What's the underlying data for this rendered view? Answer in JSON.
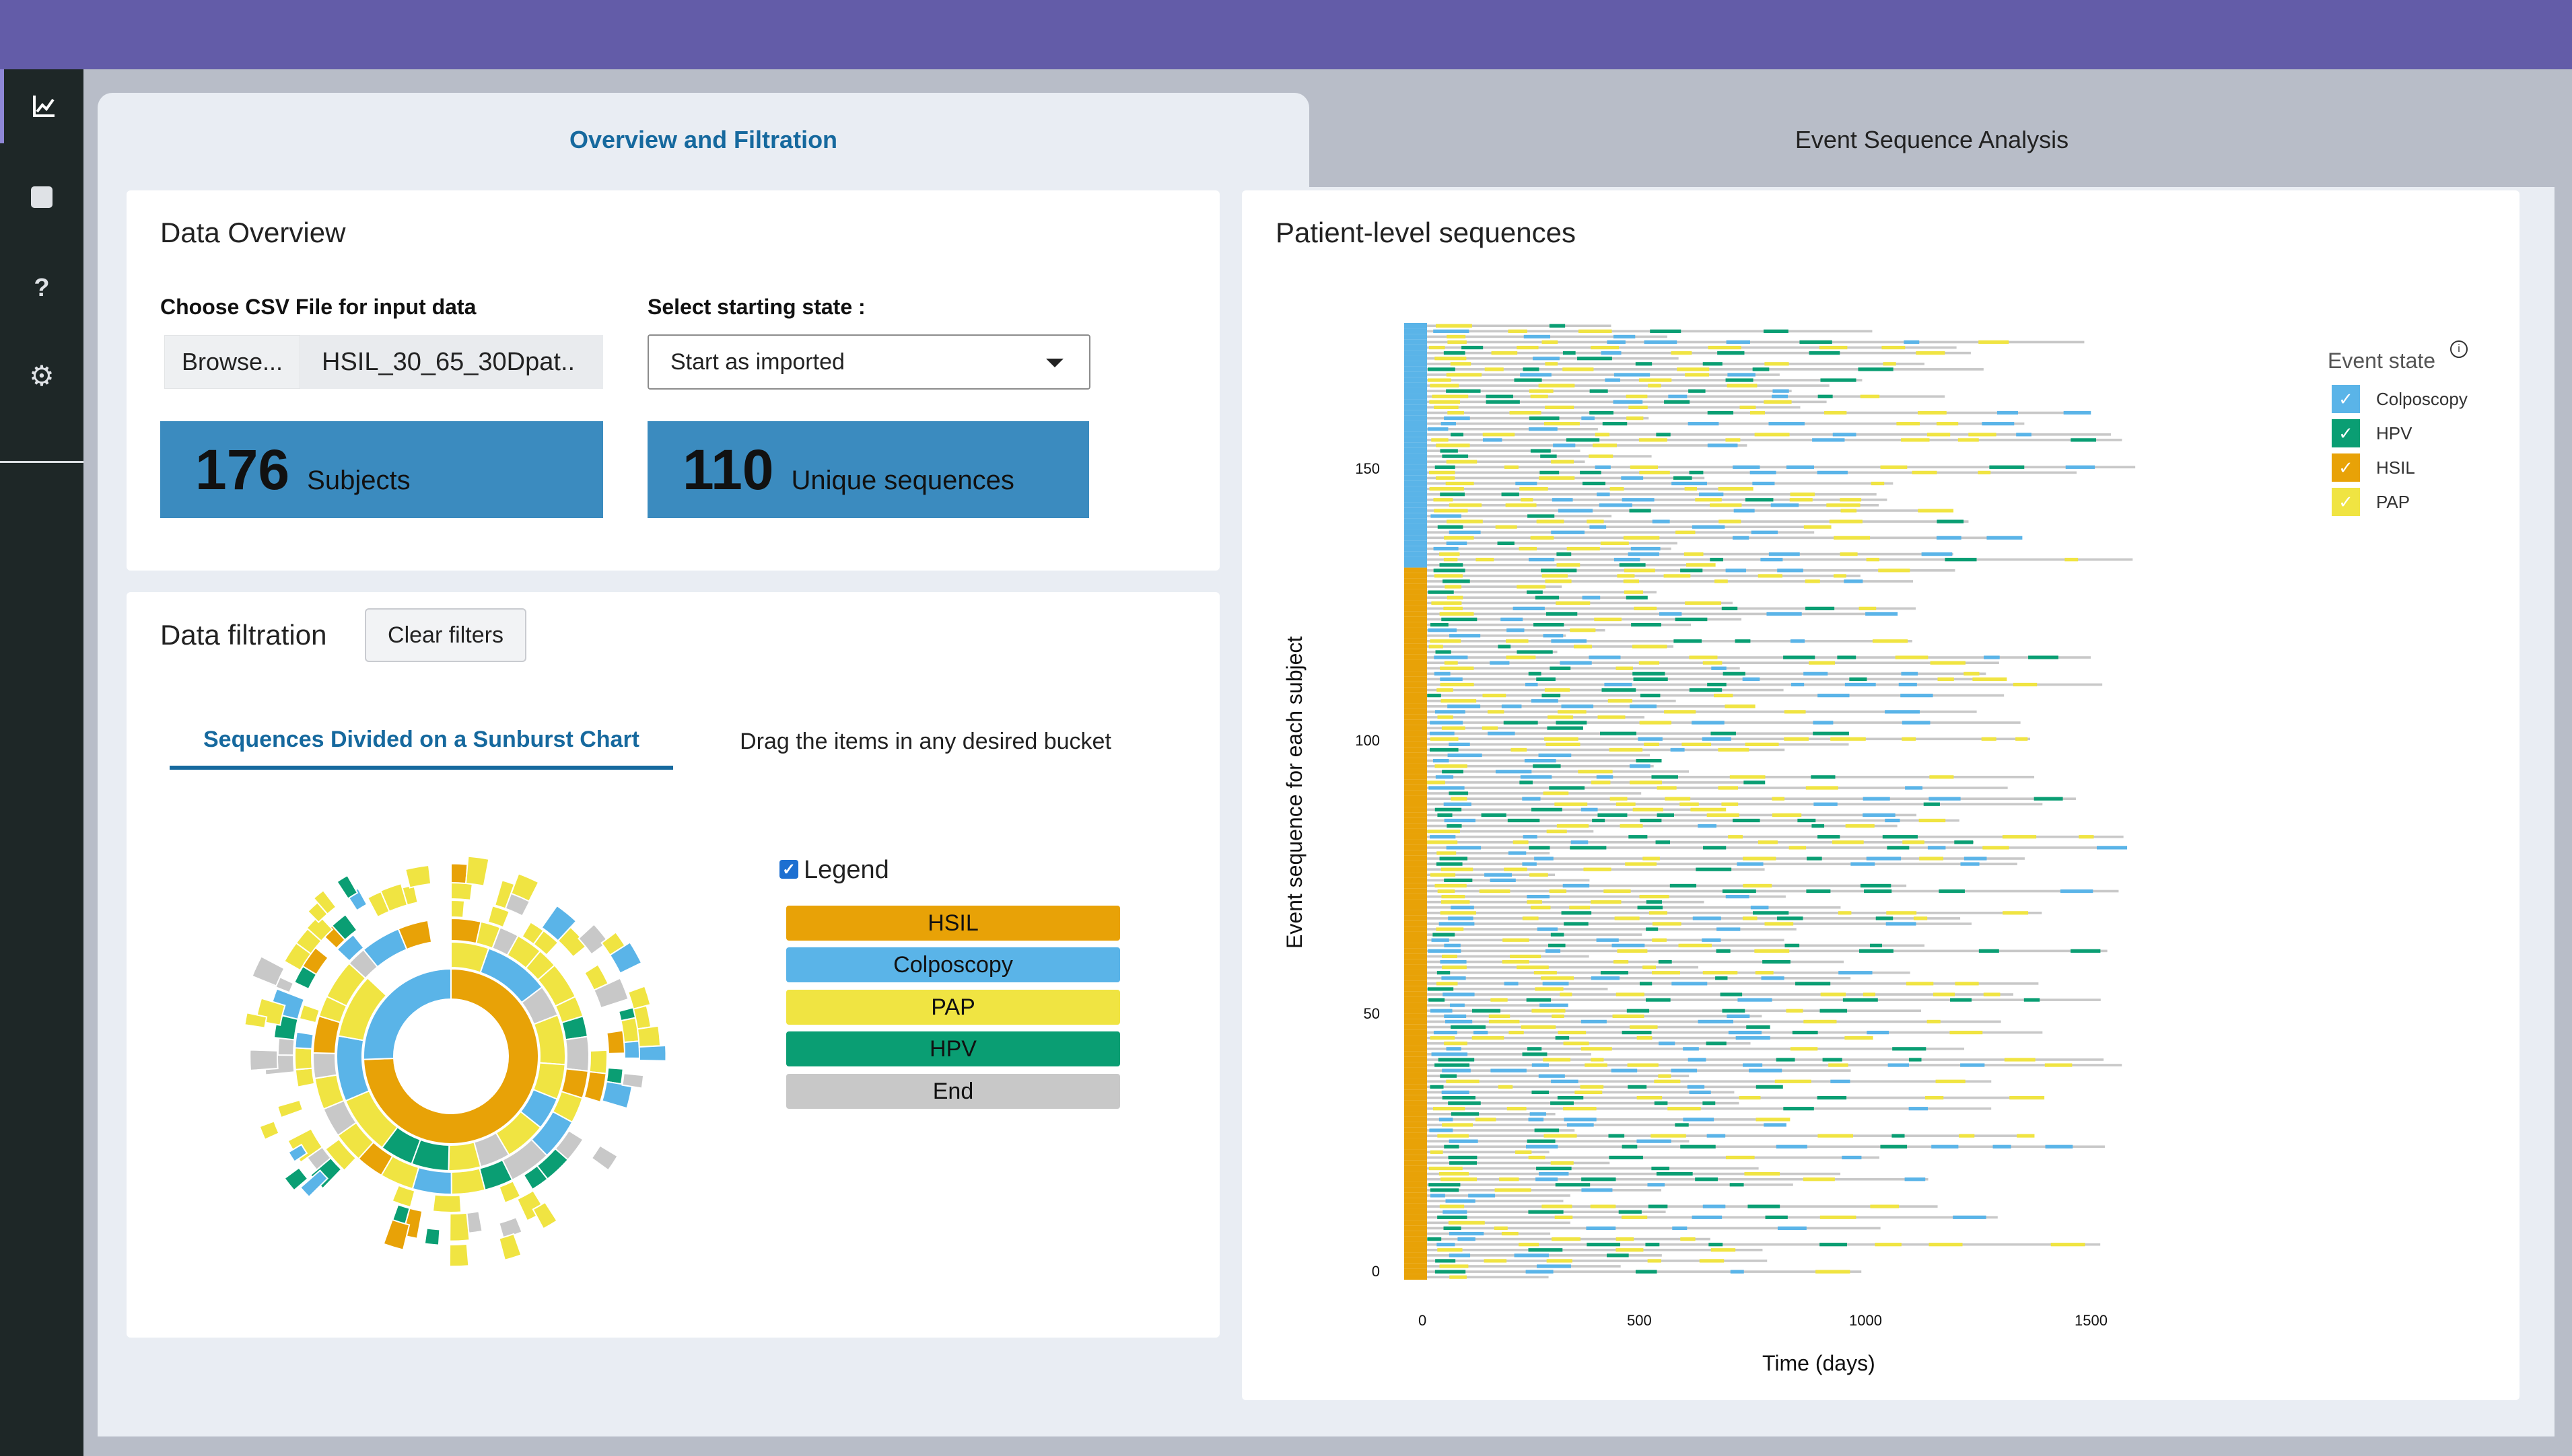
{
  "tabs": {
    "overview": "Overview and Filtration",
    "event_sequence": "Event Sequence Analysis"
  },
  "sidebar": {
    "items": [
      {
        "icon": "chart-line-icon"
      },
      {
        "icon": "square-icon"
      },
      {
        "icon": "question-icon",
        "glyph": "?"
      },
      {
        "icon": "gear-icon",
        "glyph": "⚙"
      }
    ]
  },
  "overview": {
    "title": "Data Overview",
    "csv_label": "Choose CSV File for input data",
    "browse_label": "Browse...",
    "file_name": "HSIL_30_65_30Dpat..",
    "state_label": "Select starting state :",
    "state_value": "Start as imported",
    "subjects_count": "176",
    "subjects_label": "Subjects",
    "sequences_count": "110",
    "sequences_label": "Unique sequences"
  },
  "filtration": {
    "title": "Data filtration",
    "clear_label": "Clear filters",
    "subtab_sunburst": "Sequences Divided on a Sunburst Chart",
    "subtab_drag": "Drag the items in any desired bucket",
    "legend_label": "Legend",
    "buckets": [
      {
        "label": "HSIL",
        "color": "#e8a207"
      },
      {
        "label": "Colposcopy",
        "color": "#5ab4e8"
      },
      {
        "label": "PAP",
        "color": "#f0e442"
      },
      {
        "label": "HPV",
        "color": "#0a9e73"
      },
      {
        "label": "End",
        "color": "#c8c8c8"
      }
    ]
  },
  "patient_chart": {
    "title": "Patient-level sequences",
    "legend_title": "Event state",
    "legend": [
      {
        "label": "Colposcopy",
        "color": "#5ab4e8"
      },
      {
        "label": "HPV",
        "color": "#0a9e73"
      },
      {
        "label": "HSIL",
        "color": "#e8a207"
      },
      {
        "label": "PAP",
        "color": "#f0e442"
      }
    ]
  },
  "chart_data": {
    "type": "bar",
    "title": "Patient-level sequences",
    "xlabel": "Time (days)",
    "ylabel": "Event sequence for each subject",
    "xlim": [
      0,
      1800
    ],
    "ylim": [
      0,
      176
    ],
    "xticks": [
      "0",
      "500",
      "1000",
      "1500"
    ],
    "yticks": [
      "0",
      "50",
      "100",
      "150"
    ],
    "series": [
      {
        "name": "Colposcopy",
        "color": "#5ab4e8"
      },
      {
        "name": "HPV",
        "color": "#0a9e73"
      },
      {
        "name": "HSIL",
        "color": "#e8a207"
      },
      {
        "name": "PAP",
        "color": "#f0e442"
      },
      {
        "name": "End",
        "color": "#c8c8c8"
      }
    ],
    "start_state_blocks": [
      {
        "state": "HSIL",
        "from": 0,
        "to": 131
      },
      {
        "state": "Colposcopy",
        "from": 131,
        "to": 176
      }
    ]
  }
}
